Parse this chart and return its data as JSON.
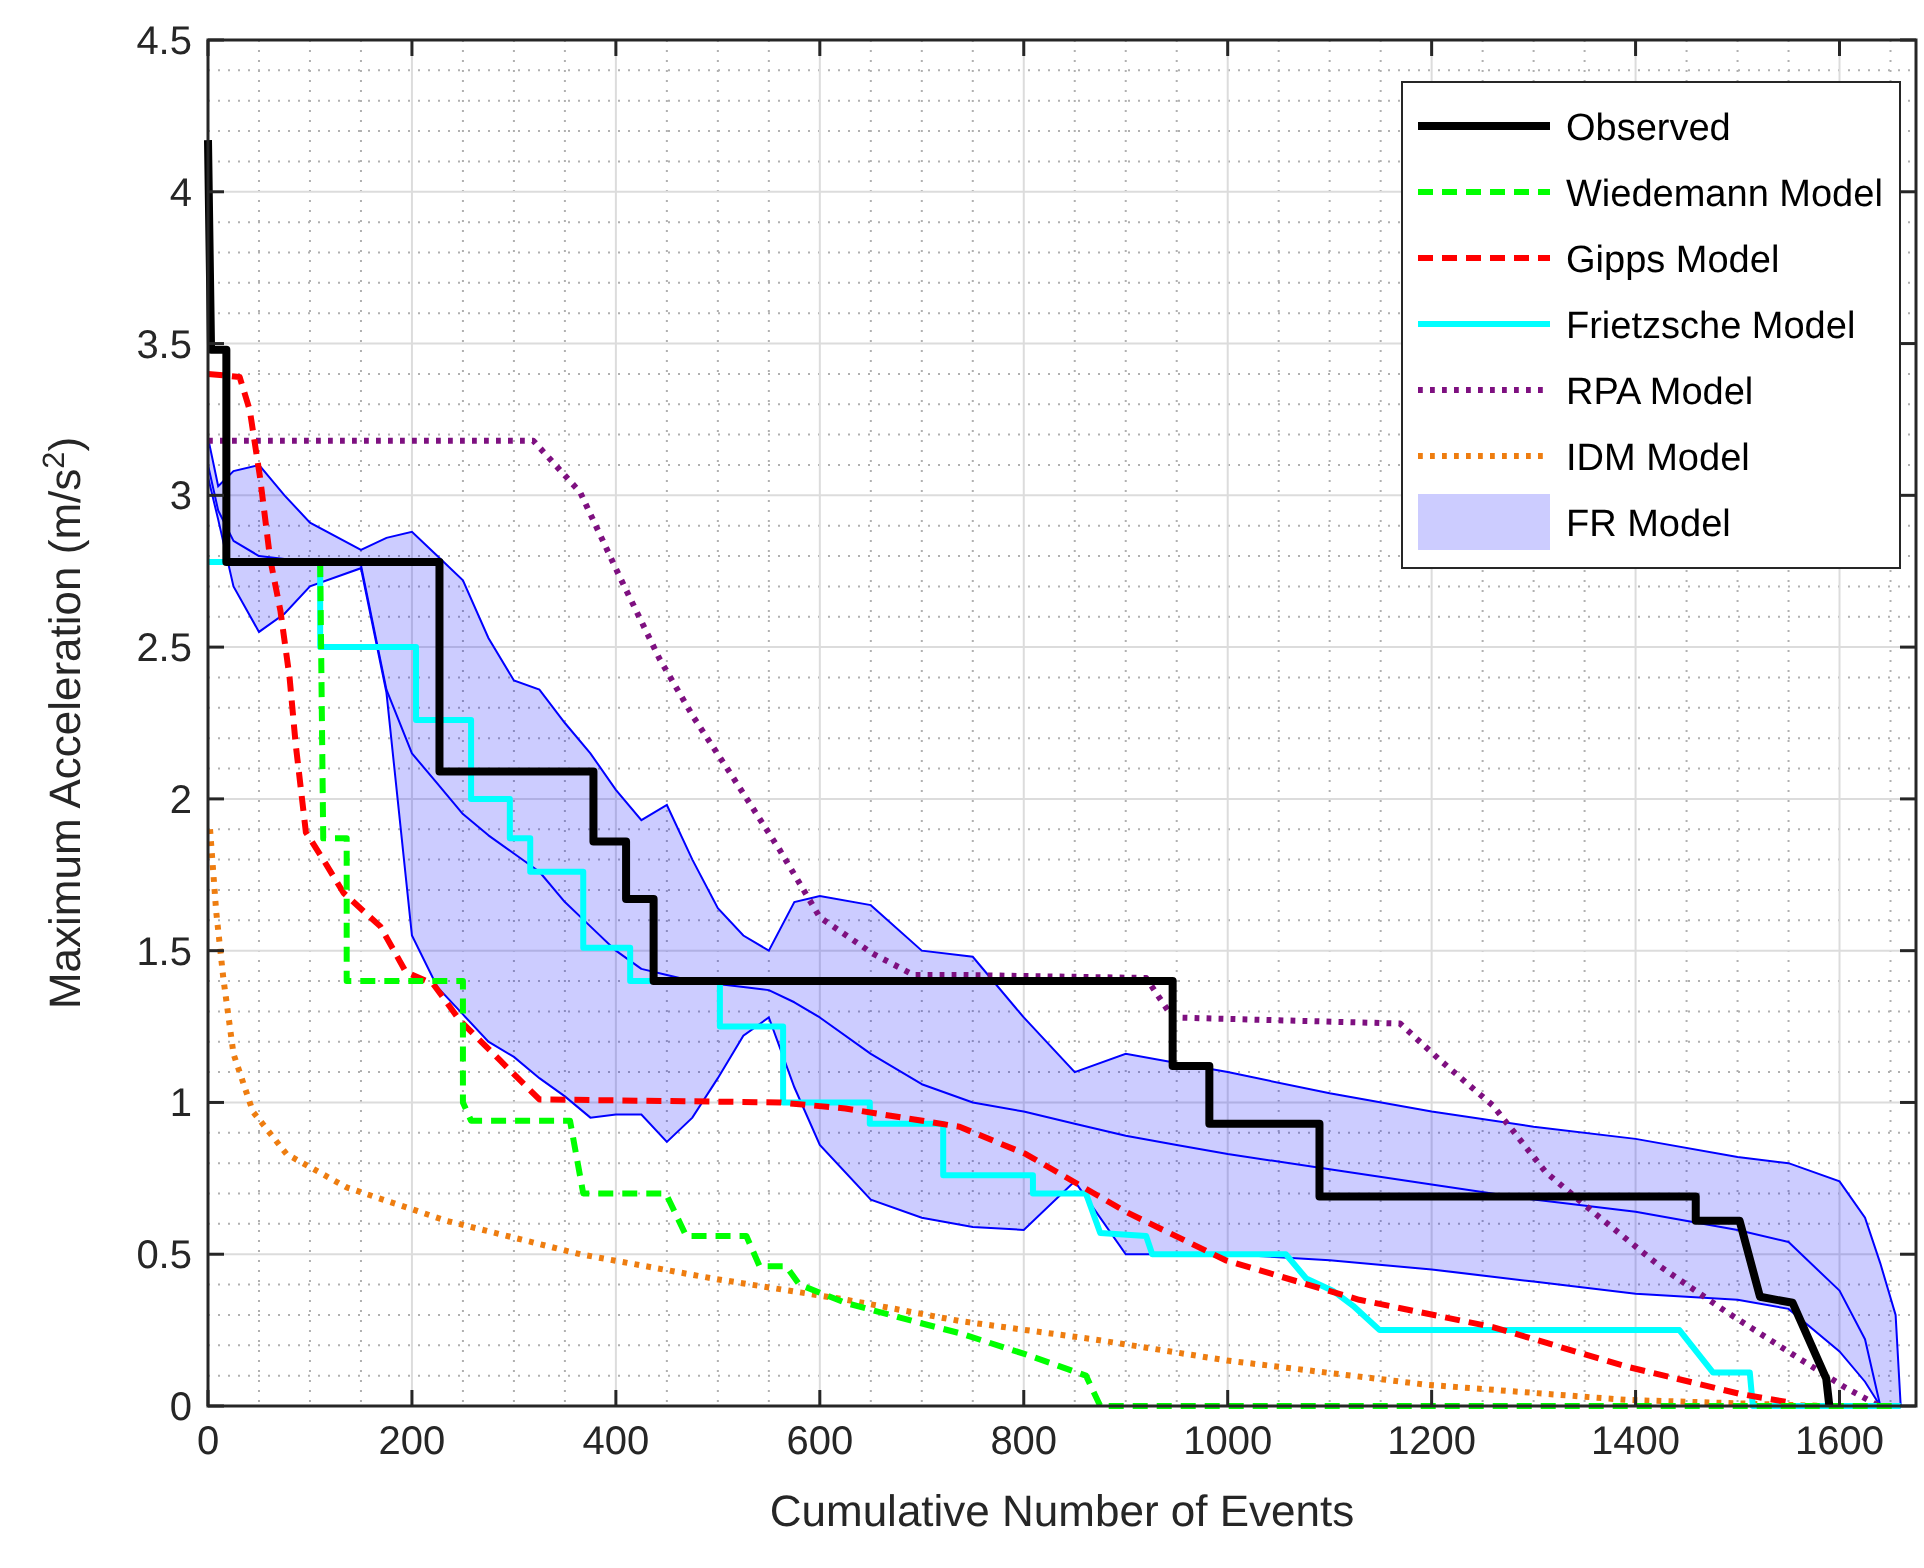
{
  "chart_data": {
    "type": "line",
    "xlabel": "Cumulative Number of Events",
    "ylabel": "Maximum Acceleration (m/s$^{2}$)",
    "xlim": [
      0,
      1675
    ],
    "xticks": [
      0,
      200,
      400,
      600,
      800,
      1000,
      1200,
      1400,
      1600
    ],
    "ylim": [
      0,
      4.5
    ],
    "yticks": [
      0,
      0.5,
      1,
      1.5,
      2,
      2.5,
      3,
      3.5,
      4,
      4.5
    ],
    "grid": true,
    "legend": "top right",
    "series": [
      {
        "name": "Observed",
        "color": "#000000",
        "line_style": "solid",
        "x": [
          0,
          3,
          18,
          18,
          227,
          227,
          378,
          378,
          410,
          410,
          437,
          437,
          946,
          946,
          982,
          982,
          1090,
          1090,
          1459,
          1459,
          1502,
          1522,
          1554,
          1587,
          1590
        ],
        "values": [
          4.17,
          3.48,
          3.48,
          2.78,
          2.78,
          2.09,
          2.09,
          1.86,
          1.86,
          1.67,
          1.67,
          1.4,
          1.4,
          1.12,
          1.12,
          0.93,
          0.93,
          0.69,
          0.69,
          0.61,
          0.61,
          0.36,
          0.34,
          0.09,
          0
        ]
      },
      {
        "name": "Wiedemann Model",
        "color": "#00ff00",
        "line_style": "dashed",
        "x": [
          110,
          113,
          136,
          136,
          250,
          250,
          258,
          355,
          368,
          449,
          469,
          528,
          541,
          567,
          580,
          625,
          691,
          737,
          802,
          861,
          875,
          1660
        ],
        "values": [
          2.78,
          1.87,
          1.87,
          1.4,
          1.4,
          1.0,
          0.94,
          0.94,
          0.7,
          0.7,
          0.56,
          0.56,
          0.46,
          0.46,
          0.4,
          0.34,
          0.28,
          0.24,
          0.17,
          0.1,
          0,
          0
        ]
      },
      {
        "name": "Gipps Model",
        "color": "#ff0000",
        "line_style": "dashed",
        "x": [
          0,
          31,
          41,
          51,
          61,
          71,
          80,
          86,
          96,
          113,
          133,
          169,
          194,
          221,
          247,
          286,
          325,
          561,
          625,
          737,
          802,
          900,
          998,
          1129,
          1260,
          1391,
          1502,
          1554
        ],
        "values": [
          3.4,
          3.39,
          3.28,
          3.06,
          2.79,
          2.62,
          2.4,
          2.18,
          1.89,
          1.8,
          1.69,
          1.58,
          1.43,
          1.39,
          1.27,
          1.14,
          1.01,
          1.0,
          0.98,
          0.92,
          0.83,
          0.64,
          0.48,
          0.35,
          0.26,
          0.13,
          0.04,
          0.01
        ]
      },
      {
        "name": "Frietzsche Model",
        "color": "#00ffff",
        "line_style": "solid",
        "x": [
          0,
          110,
          110,
          204,
          204,
          258,
          258,
          296,
          296,
          316,
          316,
          368,
          368,
          414,
          414,
          502,
          502,
          564,
          564,
          649,
          649,
          721,
          721,
          809,
          809,
          861,
          875,
          920,
          926,
          1057,
          1077,
          1103,
          1123,
          1149,
          1443,
          1476,
          1512,
          1515,
          1660
        ],
        "values": [
          2.78,
          2.78,
          2.5,
          2.5,
          2.26,
          2.26,
          2.0,
          2.0,
          1.87,
          1.87,
          1.76,
          1.76,
          1.51,
          1.51,
          1.4,
          1.4,
          1.25,
          1.25,
          1.0,
          1.0,
          0.93,
          0.93,
          0.76,
          0.76,
          0.7,
          0.7,
          0.57,
          0.56,
          0.5,
          0.5,
          0.42,
          0.38,
          0.33,
          0.25,
          0.25,
          0.11,
          0.11,
          0,
          0
        ]
      },
      {
        "name": "RPA Model",
        "color": "#7e1080",
        "line_style": "dotted",
        "x": [
          0,
          319,
          365,
          404,
          443,
          476,
          515,
          561,
          600,
          652,
          692,
          737,
          920,
          946,
          1169,
          1208,
          1260,
          1312,
          1358,
          1424,
          1489,
          1554,
          1606,
          1639
        ],
        "values": [
          3.18,
          3.18,
          3.01,
          2.73,
          2.46,
          2.27,
          2.07,
          1.83,
          1.61,
          1.49,
          1.42,
          1.42,
          1.41,
          1.28,
          1.26,
          1.14,
          0.99,
          0.77,
          0.64,
          0.46,
          0.31,
          0.17,
          0.06,
          0
        ]
      },
      {
        "name": "IDM Model",
        "color": "#ee7d10",
        "line_style": "dotted",
        "x": [
          2,
          8,
          15,
          25,
          44,
          77,
          136,
          234,
          365,
          495,
          626,
          737,
          868,
          999,
          1195,
          1391,
          1586,
          1640
        ],
        "values": [
          1.9,
          1.63,
          1.41,
          1.16,
          0.97,
          0.83,
          0.72,
          0.61,
          0.5,
          0.42,
          0.35,
          0.28,
          0.22,
          0.15,
          0.07,
          0.02,
          0,
          0
        ]
      },
      {
        "name": "FR Model",
        "color": "#0000ff",
        "line_style": "solid",
        "x": [
          0,
          10,
          25,
          50,
          75,
          100,
          150,
          175,
          200,
          225,
          250,
          275,
          300,
          325,
          350,
          375,
          400,
          425,
          450,
          475,
          500,
          525,
          550,
          575,
          600,
          650,
          700,
          750,
          800,
          850,
          900,
          950,
          1000,
          1100,
          1200,
          1300,
          1400,
          1500,
          1550,
          1600,
          1625,
          1640,
          1655,
          1660
        ],
        "values": [
          3.1,
          2.95,
          2.85,
          2.8,
          2.79,
          2.78,
          2.77,
          2.36,
          2.15,
          2.05,
          1.95,
          1.88,
          1.82,
          1.76,
          1.66,
          1.58,
          1.5,
          1.44,
          1.42,
          1.4,
          1.39,
          1.38,
          1.37,
          1.33,
          1.28,
          1.16,
          1.06,
          1.0,
          0.97,
          0.93,
          0.89,
          0.86,
          0.83,
          0.78,
          0.73,
          0.68,
          0.64,
          0.58,
          0.54,
          0.38,
          0.22,
          0,
          null,
          null
        ],
        "lower": [
          3.06,
          2.92,
          2.7,
          2.55,
          2.61,
          2.7,
          2.76,
          2.35,
          1.55,
          1.38,
          1.29,
          1.2,
          1.15,
          1.08,
          1.02,
          0.95,
          0.96,
          0.96,
          0.87,
          0.95,
          1.08,
          1.22,
          1.28,
          1.05,
          0.86,
          0.68,
          0.62,
          0.59,
          0.58,
          0.74,
          0.5,
          0.5,
          0.5,
          0.48,
          0.45,
          0.41,
          0.37,
          0.35,
          0.32,
          0.18,
          0.08,
          0,
          0,
          0
        ],
        "upper": [
          3.19,
          3.03,
          3.08,
          3.1,
          3.0,
          2.91,
          2.82,
          2.86,
          2.88,
          2.8,
          2.72,
          2.53,
          2.39,
          2.36,
          2.25,
          2.15,
          2.03,
          1.93,
          1.98,
          1.8,
          1.64,
          1.55,
          1.5,
          1.66,
          1.68,
          1.65,
          1.5,
          1.48,
          1.28,
          1.1,
          1.16,
          1.13,
          1.1,
          1.03,
          0.97,
          0.92,
          0.88,
          0.82,
          0.8,
          0.74,
          0.62,
          0.47,
          0.3,
          0
        ]
      }
    ]
  }
}
